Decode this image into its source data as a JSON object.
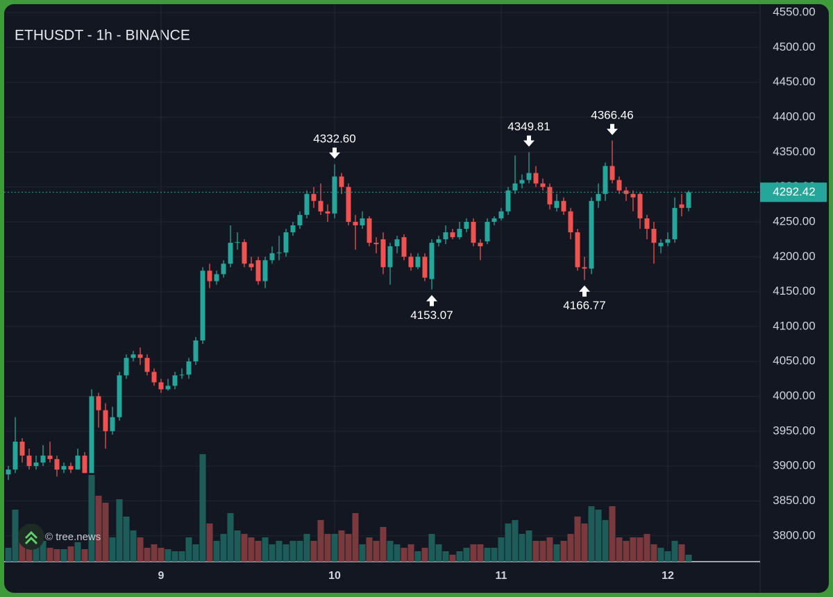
{
  "chart_data": {
    "type": "candlestick",
    "title": "ETHUSDT - 1h - BINANCE",
    "watermark": "© tree.news",
    "categories": [
      null,
      null,
      null,
      null,
      null,
      null,
      null,
      null,
      null,
      null,
      null,
      null,
      null,
      null,
      null,
      null,
      null,
      null,
      null,
      null,
      null,
      null,
      "9",
      null,
      null,
      null,
      null,
      null,
      null,
      null,
      null,
      null,
      null,
      null,
      null,
      null,
      null,
      null,
      null,
      null,
      null,
      null,
      null,
      null,
      null,
      null,
      null,
      "10",
      null,
      null,
      null,
      null,
      null,
      null,
      null,
      null,
      null,
      null,
      null,
      null,
      null,
      null,
      null,
      null,
      null,
      null,
      null,
      null,
      null,
      null,
      null,
      "11",
      null,
      null,
      null,
      null,
      null,
      null,
      null,
      null,
      null,
      null,
      null,
      null,
      null,
      null,
      null,
      null,
      null,
      null,
      null,
      null,
      null,
      null,
      null,
      "12",
      null,
      null,
      null
    ],
    "open": [
      3888,
      3895,
      3935,
      3915,
      3900,
      3905,
      3915,
      3910,
      3895,
      3900,
      3895,
      3915,
      3890,
      4000,
      3980,
      3950,
      3970,
      4030,
      4055,
      4060,
      4055,
      4035,
      4020,
      4010,
      4015,
      4030,
      4031,
      4050,
      4080,
      4180,
      4165,
      4175,
      4190,
      4220,
      4221,
      4190,
      4195,
      4165,
      4195,
      4205,
      4206,
      4235,
      4245,
      4260,
      4290,
      4280,
      4265,
      4262,
      4315,
      4300,
      4250,
      4245,
      4255,
      4220,
      4225,
      4185,
      4215,
      4228,
      4200,
      4185,
      4200,
      4168,
      4220,
      4225,
      4235,
      4228,
      4240,
      4250,
      4220,
      4222,
      4250,
      4255,
      4265,
      4295,
      4305,
      4310,
      4320,
      4305,
      4300,
      4270,
      4280,
      4265,
      4235,
      4185,
      4183,
      4280,
      4290,
      4330,
      4310,
      4295,
      4290,
      4290,
      4255,
      4240,
      4215,
      4220,
      4225,
      4275,
      4270
    ],
    "high": [
      3900,
      3970,
      3940,
      3925,
      3915,
      3930,
      3935,
      3915,
      3905,
      3905,
      3925,
      3920,
      4010,
      4005,
      3990,
      3985,
      4035,
      4060,
      4065,
      4070,
      4060,
      4040,
      4025,
      4025,
      4035,
      4040,
      4055,
      4085,
      4185,
      4190,
      4180,
      4195,
      4245,
      4235,
      4225,
      4200,
      4200,
      4200,
      4215,
      4230,
      4240,
      4250,
      4265,
      4295,
      4300,
      4305,
      4275,
      4332.6,
      4320,
      4305,
      4260,
      4265,
      4258,
      4228,
      4235,
      4220,
      4230,
      4232,
      4205,
      4205,
      4205,
      4225,
      4230,
      4245,
      4240,
      4250,
      4255,
      4255,
      4225,
      4255,
      4258,
      4270,
      4300,
      4345,
      4318,
      4349.81,
      4330,
      4312,
      4305,
      4290,
      4285,
      4270,
      4240,
      4200,
      4285,
      4305,
      4335,
      4366.46,
      4315,
      4300,
      4295,
      4292,
      4260,
      4250,
      4225,
      4235,
      4285,
      4290,
      4295
    ],
    "low": [
      3880,
      3890,
      3905,
      3895,
      3895,
      3900,
      3905,
      3885,
      3890,
      3890,
      3895,
      3890,
      3890,
      3955,
      3925,
      3945,
      3965,
      4025,
      4050,
      4045,
      4030,
      4015,
      4005,
      4008,
      4010,
      4025,
      4025,
      4045,
      4075,
      4155,
      4160,
      4170,
      4185,
      4210,
      4185,
      4180,
      4160,
      4155,
      4190,
      4195,
      4200,
      4230,
      4240,
      4255,
      4270,
      4260,
      4250,
      4255,
      4290,
      4245,
      4210,
      4240,
      4215,
      4205,
      4175,
      4160,
      4205,
      4195,
      4180,
      4182,
      4165,
      4153.07,
      4215,
      4218,
      4225,
      4225,
      4235,
      4215,
      4195,
      4218,
      4245,
      4252,
      4260,
      4290,
      4298,
      4305,
      4300,
      4295,
      4268,
      4265,
      4260,
      4225,
      4180,
      4166.77,
      4175,
      4270,
      4280,
      4305,
      4290,
      4280,
      4265,
      4240,
      4225,
      4190,
      4205,
      4215,
      4220,
      4258,
      4265
    ],
    "close": [
      3895,
      3935,
      3915,
      3900,
      3905,
      3915,
      3910,
      3895,
      3900,
      3895,
      3915,
      3890,
      4000,
      3980,
      3950,
      3970,
      4030,
      4055,
      4060,
      4055,
      4035,
      4020,
      4010,
      4015,
      4030,
      4031,
      4050,
      4080,
      4180,
      4165,
      4175,
      4190,
      4220,
      4221,
      4190,
      4185,
      4165,
      4195,
      4205,
      4206,
      4235,
      4245,
      4260,
      4290,
      4280,
      4265,
      4262,
      4315,
      4300,
      4250,
      4245,
      4255,
      4220,
      4218,
      4185,
      4215,
      4225,
      4200,
      4185,
      4200,
      4170,
      4220,
      4225,
      4235,
      4228,
      4240,
      4250,
      4220,
      4215,
      4250,
      4255,
      4265,
      4295,
      4305,
      4310,
      4320,
      4305,
      4300,
      4275,
      4280,
      4265,
      4235,
      4185,
      4183,
      4280,
      4290,
      4330,
      4310,
      4295,
      4290,
      4285,
      4255,
      4240,
      4220,
      4220,
      4225,
      4270,
      4270,
      4292.42
    ],
    "volume": [
      20,
      75,
      40,
      25,
      35,
      30,
      20,
      18,
      18,
      22,
      28,
      18,
      125,
      95,
      85,
      35,
      90,
      65,
      45,
      35,
      20,
      25,
      20,
      18,
      15,
      15,
      35,
      25,
      155,
      55,
      30,
      40,
      70,
      45,
      40,
      35,
      30,
      35,
      25,
      30,
      25,
      30,
      30,
      40,
      30,
      60,
      40,
      40,
      45,
      40,
      70,
      25,
      35,
      30,
      50,
      30,
      25,
      20,
      25,
      15,
      20,
      40,
      25,
      15,
      10,
      15,
      20,
      25,
      25,
      20,
      20,
      35,
      55,
      60,
      40,
      45,
      30,
      30,
      35,
      25,
      30,
      40,
      65,
      55,
      80,
      75,
      60,
      80,
      35,
      30,
      35,
      35,
      40,
      25,
      20,
      15,
      30,
      25,
      10
    ],
    "up_color": "#26a69a",
    "down_color": "#ef5350",
    "up_volume_color": "#1d5c58",
    "down_volume_color": "#7a3a3d",
    "ylim": [
      3763,
      4563
    ],
    "yticks": [
      {
        "value": 3800,
        "label": "3800.00"
      },
      {
        "value": 3850,
        "label": "3850.00"
      },
      {
        "value": 3900,
        "label": "3900.00"
      },
      {
        "value": 3950,
        "label": "3950.00"
      },
      {
        "value": 4000,
        "label": "4000.00"
      },
      {
        "value": 4050,
        "label": "4050.00"
      },
      {
        "value": 4100,
        "label": "4100.00"
      },
      {
        "value": 4150,
        "label": "4150.00"
      },
      {
        "value": 4200,
        "label": "4200.00"
      },
      {
        "value": 4250,
        "label": "4250.00"
      },
      {
        "value": 4300,
        "label": "4300.00"
      },
      {
        "value": 4350,
        "label": "4350.00"
      },
      {
        "value": 4400,
        "label": "4400.00"
      },
      {
        "value": 4450,
        "label": "4450.00"
      },
      {
        "value": 4500,
        "label": "4500.00"
      },
      {
        "value": 4550,
        "label": "4550.00"
      }
    ],
    "last_price": {
      "value": 4292.42,
      "label": "4292.42"
    },
    "annotations": [
      {
        "value": 4332.6,
        "label": "4332.60"
      },
      {
        "value": 4153.07,
        "label": "4153.07"
      },
      {
        "value": 4349.81,
        "label": "4349.81"
      },
      {
        "value": 4166.77,
        "label": "4166.77"
      },
      {
        "value": 4366.46,
        "label": "4366.46"
      }
    ],
    "grid": true
  }
}
